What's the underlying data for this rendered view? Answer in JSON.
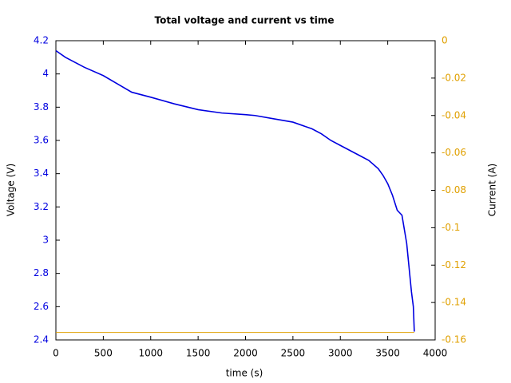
{
  "chart_data": {
    "type": "line",
    "title": "Total voltage and current vs time",
    "x_label": "time (s)",
    "y_label": "Voltage (V)",
    "y2_label": "Current (A)",
    "x": [
      0,
      100,
      300,
      500,
      650,
      800,
      1000,
      1250,
      1500,
      1750,
      2000,
      2100,
      2300,
      2500,
      2700,
      2800,
      2900,
      3000,
      3200,
      3300,
      3400,
      3450,
      3500,
      3550,
      3600,
      3650,
      3700,
      3750,
      3770,
      3780
    ],
    "series": [
      {
        "name": "Voltage",
        "color": "#0000e0",
        "axis": "y",
        "values": [
          4.14,
          4.1,
          4.04,
          3.99,
          3.94,
          3.89,
          3.86,
          3.82,
          3.785,
          3.765,
          3.755,
          3.75,
          3.73,
          3.71,
          3.67,
          3.64,
          3.6,
          3.57,
          3.51,
          3.48,
          3.43,
          3.39,
          3.34,
          3.27,
          3.18,
          3.15,
          2.98,
          2.69,
          2.6,
          2.45
        ]
      },
      {
        "name": "Current",
        "color": "#e0a000",
        "axis": "y2",
        "values": [
          -0.156,
          -0.156,
          -0.156,
          -0.156,
          -0.156,
          -0.156,
          -0.156,
          -0.156,
          -0.156,
          -0.156,
          -0.156,
          -0.156,
          -0.156,
          -0.156,
          -0.156,
          -0.156,
          -0.156,
          -0.156,
          -0.156,
          -0.156,
          -0.156,
          -0.156,
          -0.156,
          -0.156,
          -0.156,
          -0.156,
          -0.156,
          -0.156,
          -0.156,
          -0.156
        ]
      }
    ],
    "xlim": [
      0,
      4000
    ],
    "xticks": [
      0,
      500,
      1000,
      1500,
      2000,
      2500,
      3000,
      3500,
      4000
    ],
    "ylim": [
      2.4,
      4.2
    ],
    "yticks": [
      2.4,
      2.6,
      2.8,
      3,
      3.2,
      3.4,
      3.6,
      3.8,
      4,
      4.2
    ],
    "y2lim": [
      -0.16,
      0
    ],
    "y2ticks": [
      -0.16,
      -0.14,
      -0.12,
      -0.1,
      -0.08,
      -0.06,
      -0.04,
      -0.02,
      0
    ],
    "ytick_color": "#0000e0",
    "y2tick_color": "#e0a000"
  }
}
